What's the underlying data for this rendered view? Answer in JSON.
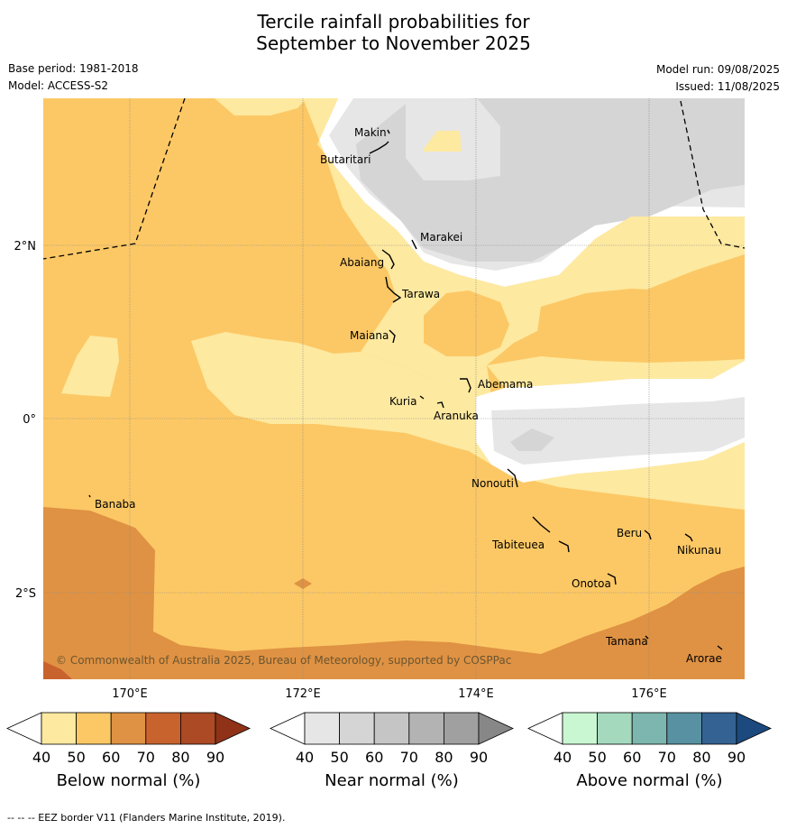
{
  "title_line1": "Tercile rainfall probabilities for",
  "title_line2": "September to November 2025",
  "base_period": "Base period: 1981-2018",
  "model": "Model: ACCESS-S2",
  "model_run": "Model run: 09/08/2025",
  "issued": "Issued: 11/08/2025",
  "copyright": "© Commonwealth of Australia 2025, Bureau of Meteorology, supported by COSPPac",
  "footer_note": "-- -- -- EEZ border V11 (Flanders Marine Institute, 2019).",
  "map": {
    "lat_labels": [
      "2°N",
      "0°",
      "2°S"
    ],
    "lon_labels": [
      "170°E",
      "172°E",
      "174°E",
      "176°E"
    ],
    "places": [
      "Makin",
      "Butaritari",
      "Marakei",
      "Abaiang",
      "Tarawa",
      "Maiana",
      "Abemama",
      "Kuria",
      "Aranuka",
      "Nonouti",
      "Banaba",
      "Tabiteuea",
      "Beru",
      "Nikunau",
      "Onotoa",
      "Tamana",
      "Arorae"
    ]
  },
  "colors": {
    "below": [
      "#fde9a0",
      "#fcc865",
      "#df9243",
      "#c9632e",
      "#ab4a25",
      "#8f3218"
    ],
    "near": [
      "#e6e6e6",
      "#d5d5d5",
      "#c5c5c5",
      "#b3b3b3",
      "#a0a0a0",
      "#878787"
    ],
    "above": [
      "#c9f7d1",
      "#a5d9bd",
      "#7db6ae",
      "#5891a1",
      "#346292",
      "#1c4a7e"
    ]
  },
  "colorbars": [
    {
      "label": "Below normal (%)",
      "ticks": [
        "40",
        "50",
        "60",
        "70",
        "80",
        "90"
      ]
    },
    {
      "label": "Near normal (%)",
      "ticks": [
        "40",
        "50",
        "60",
        "70",
        "80",
        "90"
      ]
    },
    {
      "label": "Above normal (%)",
      "ticks": [
        "40",
        "50",
        "60",
        "70",
        "80",
        "90"
      ]
    }
  ]
}
